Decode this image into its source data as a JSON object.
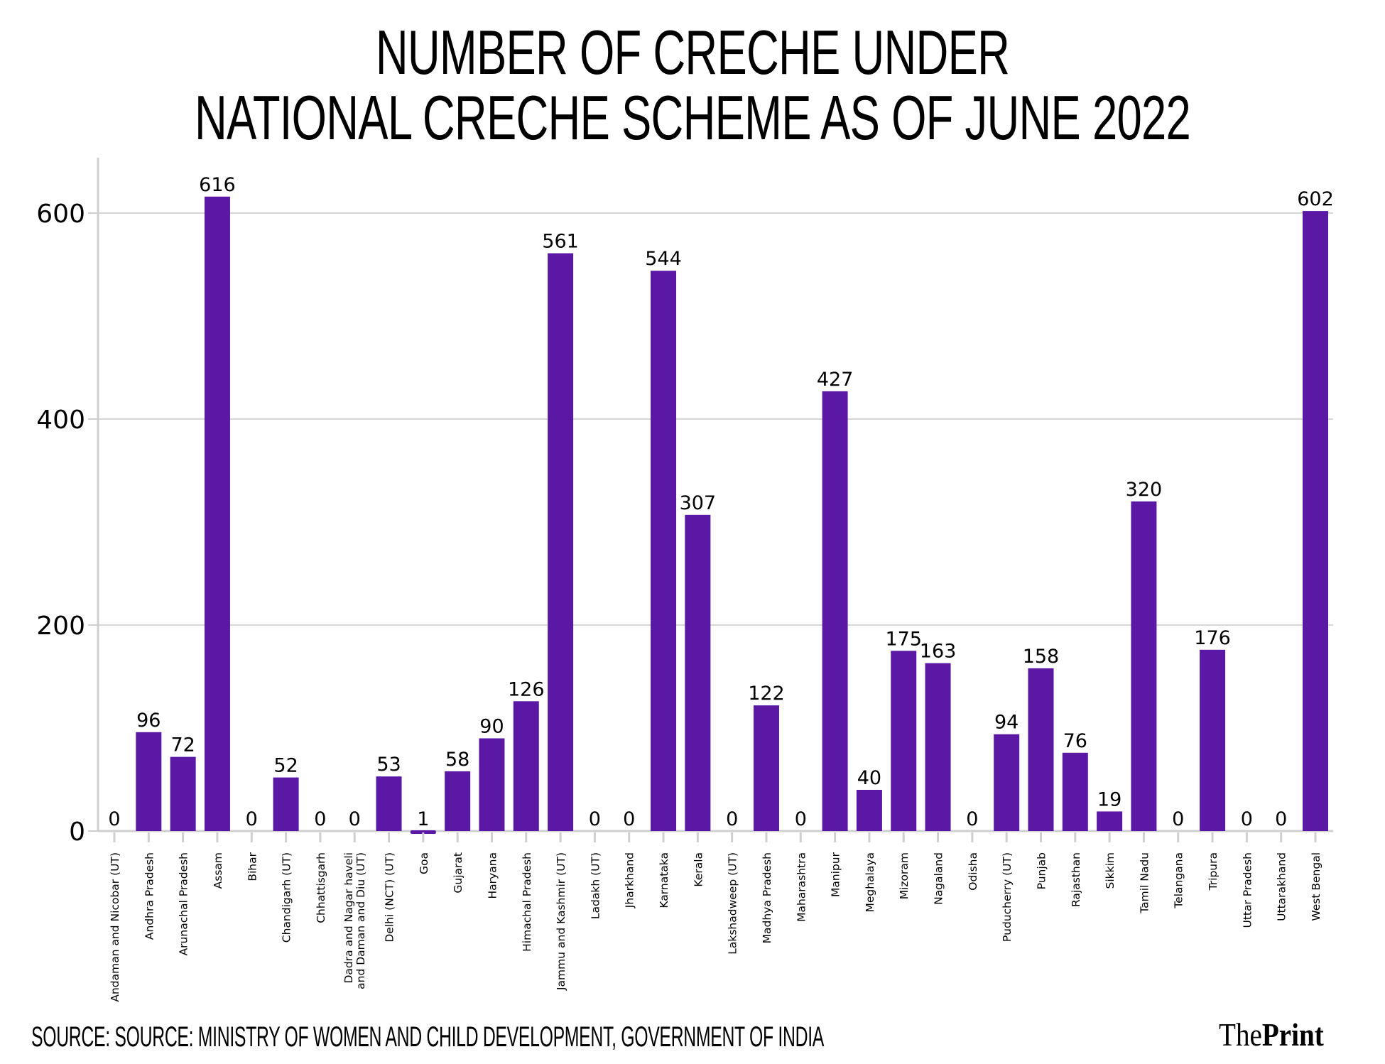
{
  "title": {
    "line1": "Number of Creche under",
    "line2": "National Creche Scheme as of June 2022"
  },
  "source": "Source: Source: Ministry of Women and Child Development, Government of India",
  "logo": {
    "part1": "The",
    "part2": "Print"
  },
  "colors": {
    "bar": "#5a18a5",
    "grid": "#d6d6d6",
    "axis": "#cfcfcf",
    "text": "#000000"
  },
  "chart_data": {
    "type": "bar",
    "title": "Number of Creche under National Creche Scheme as of June 2022",
    "xlabel": "",
    "ylabel": "",
    "ylim": [
      0,
      650
    ],
    "yticks": [
      0,
      200,
      400,
      600
    ],
    "grid": true,
    "legend": "none",
    "categories": [
      "Andaman and Nicobar (UT)",
      "Andhra Pradesh",
      "Arunachal Pradesh",
      "Assam",
      "Bihar",
      "Chandigarh (UT)",
      "Chhattisgarh",
      "Dadra and Nagar haveli|and Daman and Diu (UT)",
      "Delhi (NCT) (UT)",
      "Goa",
      "Gujarat",
      "Haryana",
      "Himachal Pradesh",
      "Jammu and Kashmir (UT)",
      "Ladakh (UT)",
      "Jharkhand",
      "Karnataka",
      "Kerala",
      "Lakshadweep (UT)",
      "Madhya Pradesh",
      "Maharashtra",
      "Manipur",
      "Meghalaya",
      "Mizoram",
      "Nagaland",
      "Odisha",
      "Puducherry (UT)",
      "Punjab",
      "Rajasthan",
      "Sikkim",
      "Tamil Nadu",
      "Telangana",
      "Tripura",
      "Uttar Pradesh",
      "Uttarakhand",
      "West Bengal"
    ],
    "values": [
      0,
      96,
      72,
      616,
      0,
      52,
      0,
      0,
      53,
      1,
      58,
      90,
      126,
      561,
      0,
      0,
      544,
      307,
      0,
      122,
      0,
      427,
      40,
      175,
      163,
      0,
      94,
      158,
      76,
      19,
      320,
      0,
      176,
      0,
      0,
      602
    ]
  }
}
